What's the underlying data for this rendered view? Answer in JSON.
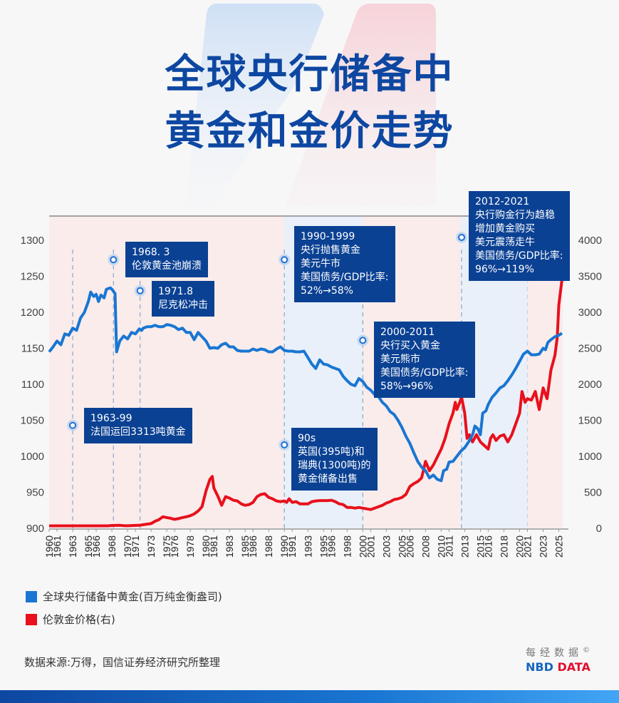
{
  "header": {
    "title_line1": "全球央行储备中",
    "title_line2": "黄金和金价走势"
  },
  "chart_data": {
    "type": "line",
    "title": "全球央行储备中黄金和金价走势",
    "xlabel": "",
    "ylabel_left": "全球央行储备中黄金(百万纯金衡盎司)",
    "ylabel_right": "伦敦金价格(右)",
    "ylim_left": [
      900,
      1300
    ],
    "ylim_right": [
      0,
      4000
    ],
    "y_ticks_left": [
      900,
      950,
      1000,
      1050,
      1100,
      1150,
      1200,
      1250,
      1300
    ],
    "y_ticks_right": [
      0,
      500,
      1000,
      1500,
      2000,
      2500,
      3000,
      3500,
      4000
    ],
    "x_tick_labels": [
      "1960",
      "1961",
      "1963",
      "1965",
      "1966",
      "1968",
      "1970",
      "1971",
      "1973",
      "1975",
      "1976",
      "1978",
      "1980",
      "1981",
      "1983",
      "1985",
      "1986",
      "1988",
      "1990",
      "1991",
      "1993",
      "1995",
      "1996",
      "1998",
      "2000",
      "2001",
      "2003",
      "2005",
      "2006",
      "2008",
      "2010",
      "2011",
      "2013",
      "2015",
      "2016",
      "2018",
      "2020",
      "2021",
      "2023",
      "2025"
    ],
    "x_range": [
      1960,
      2025.5
    ],
    "grid": false,
    "legend_position": "bottom-left",
    "series": [
      {
        "name": "全球央行储备中黄金(百万纯金衡盎司)",
        "axis": "left",
        "color": "#1976d2",
        "points": [
          [
            1960,
            1145
          ],
          [
            1960.5,
            1152
          ],
          [
            1961,
            1160
          ],
          [
            1961.5,
            1155
          ],
          [
            1962,
            1170
          ],
          [
            1962.5,
            1168
          ],
          [
            1963,
            1178
          ],
          [
            1963.5,
            1175
          ],
          [
            1964,
            1192
          ],
          [
            1964.5,
            1200
          ],
          [
            1965,
            1215
          ],
          [
            1965.3,
            1228
          ],
          [
            1965.7,
            1222
          ],
          [
            1966,
            1225
          ],
          [
            1966.3,
            1215
          ],
          [
            1966.6,
            1224
          ],
          [
            1967,
            1220
          ],
          [
            1967.3,
            1232
          ],
          [
            1967.8,
            1234
          ],
          [
            1968,
            1232
          ],
          [
            1968.4,
            1226
          ],
          [
            1968.6,
            1145
          ],
          [
            1969,
            1160
          ],
          [
            1969.5,
            1167
          ],
          [
            1970,
            1163
          ],
          [
            1970.5,
            1172
          ],
          [
            1971,
            1170
          ],
          [
            1971.5,
            1177
          ],
          [
            1971.8,
            1175
          ],
          [
            1972,
            1178
          ],
          [
            1972.5,
            1180
          ],
          [
            1973,
            1180
          ],
          [
            1973.5,
            1182
          ],
          [
            1974,
            1180
          ],
          [
            1974.5,
            1180
          ],
          [
            1975,
            1183
          ],
          [
            1975.5,
            1182
          ],
          [
            1976,
            1180
          ],
          [
            1976.5,
            1176
          ],
          [
            1977,
            1178
          ],
          [
            1977.5,
            1172
          ],
          [
            1978,
            1172
          ],
          [
            1978.5,
            1162
          ],
          [
            1979,
            1172
          ],
          [
            1979.5,
            1166
          ],
          [
            1980,
            1160
          ],
          [
            1980.5,
            1150
          ],
          [
            1981,
            1151
          ],
          [
            1981.5,
            1150
          ],
          [
            1982,
            1155
          ],
          [
            1982.5,
            1157
          ],
          [
            1983,
            1152
          ],
          [
            1983.5,
            1152
          ],
          [
            1984,
            1147
          ],
          [
            1984.5,
            1146
          ],
          [
            1985,
            1146
          ],
          [
            1985.5,
            1146
          ],
          [
            1986,
            1149
          ],
          [
            1986.5,
            1147
          ],
          [
            1987,
            1149
          ],
          [
            1987.5,
            1148
          ],
          [
            1988,
            1145
          ],
          [
            1988.5,
            1145
          ],
          [
            1989,
            1149
          ],
          [
            1989.5,
            1152
          ],
          [
            1990,
            1147
          ],
          [
            1990.5,
            1146
          ],
          [
            1991,
            1146
          ],
          [
            1991.5,
            1145
          ],
          [
            1992,
            1145
          ],
          [
            1992.5,
            1146
          ],
          [
            1993,
            1137
          ],
          [
            1993.5,
            1128
          ],
          [
            1994,
            1122
          ],
          [
            1994.5,
            1134
          ],
          [
            1995,
            1128
          ],
          [
            1995.5,
            1127
          ],
          [
            1996,
            1124
          ],
          [
            1996.5,
            1122
          ],
          [
            1997,
            1120
          ],
          [
            1997.5,
            1111
          ],
          [
            1998,
            1105
          ],
          [
            1998.5,
            1100
          ],
          [
            1999,
            1098
          ],
          [
            1999.5,
            1108
          ],
          [
            2000,
            1104
          ],
          [
            2000.5,
            1096
          ],
          [
            2001,
            1092
          ],
          [
            2001.5,
            1086
          ],
          [
            2002,
            1083
          ],
          [
            2002.5,
            1075
          ],
          [
            2003,
            1070
          ],
          [
            2003.5,
            1062
          ],
          [
            2004,
            1058
          ],
          [
            2004.5,
            1050
          ],
          [
            2005,
            1040
          ],
          [
            2005.5,
            1028
          ],
          [
            2006,
            1018
          ],
          [
            2006.5,
            1005
          ],
          [
            2007,
            993
          ],
          [
            2007.5,
            985
          ],
          [
            2008,
            980
          ],
          [
            2008.5,
            970
          ],
          [
            2009,
            974
          ],
          [
            2009.5,
            968
          ],
          [
            2010,
            966
          ],
          [
            2010.3,
            980
          ],
          [
            2010.7,
            982
          ],
          [
            2011,
            992
          ],
          [
            2011.5,
            993
          ],
          [
            2012,
            1000
          ],
          [
            2012.5,
            1007
          ],
          [
            2013,
            1012
          ],
          [
            2013.5,
            1020
          ],
          [
            2014,
            1030
          ],
          [
            2014.3,
            1042
          ],
          [
            2014.7,
            1038
          ],
          [
            2015,
            1030
          ],
          [
            2015.3,
            1060
          ],
          [
            2015.7,
            1063
          ],
          [
            2016,
            1072
          ],
          [
            2016.5,
            1082
          ],
          [
            2017,
            1088
          ],
          [
            2017.5,
            1095
          ],
          [
            2018,
            1098
          ],
          [
            2018.5,
            1105
          ],
          [
            2019,
            1113
          ],
          [
            2019.5,
            1122
          ],
          [
            2020,
            1132
          ],
          [
            2020.5,
            1142
          ],
          [
            2021,
            1146
          ],
          [
            2021.5,
            1141
          ],
          [
            2022,
            1141
          ],
          [
            2022.5,
            1142
          ],
          [
            2023,
            1150
          ],
          [
            2023.3,
            1148
          ],
          [
            2023.6,
            1158
          ],
          [
            2024,
            1162
          ],
          [
            2024.5,
            1166
          ],
          [
            2025,
            1168
          ],
          [
            2025.4,
            1171
          ]
        ]
      },
      {
        "name": "伦敦金价格(右)",
        "axis": "right",
        "color": "#e8101c",
        "points": [
          [
            1960,
            35
          ],
          [
            1962,
            35
          ],
          [
            1964,
            35
          ],
          [
            1966,
            35
          ],
          [
            1967.5,
            35
          ],
          [
            1968,
            40
          ],
          [
            1969,
            42
          ],
          [
            1969.5,
            38
          ],
          [
            1970,
            36
          ],
          [
            1971,
            41
          ],
          [
            1971.5,
            42
          ],
          [
            1972,
            50
          ],
          [
            1973,
            65
          ],
          [
            1973.5,
            98
          ],
          [
            1974,
            120
          ],
          [
            1974.5,
            160
          ],
          [
            1975,
            150
          ],
          [
            1975.5,
            140
          ],
          [
            1976,
            125
          ],
          [
            1976.5,
            135
          ],
          [
            1977,
            150
          ],
          [
            1977.5,
            160
          ],
          [
            1978,
            175
          ],
          [
            1978.5,
            200
          ],
          [
            1979,
            240
          ],
          [
            1979.5,
            300
          ],
          [
            1980,
            520
          ],
          [
            1980.5,
            680
          ],
          [
            1980.8,
            720
          ],
          [
            1981,
            560
          ],
          [
            1981.5,
            450
          ],
          [
            1982,
            320
          ],
          [
            1982.5,
            440
          ],
          [
            1983,
            420
          ],
          [
            1983.5,
            390
          ],
          [
            1984,
            380
          ],
          [
            1984.5,
            340
          ],
          [
            1985,
            320
          ],
          [
            1985.5,
            330
          ],
          [
            1986,
            360
          ],
          [
            1986.5,
            440
          ],
          [
            1987,
            470
          ],
          [
            1987.5,
            480
          ],
          [
            1988,
            430
          ],
          [
            1988.5,
            410
          ],
          [
            1989,
            380
          ],
          [
            1989.5,
            370
          ],
          [
            1990,
            380
          ],
          [
            1990.3,
            360
          ],
          [
            1990.6,
            410
          ],
          [
            1991,
            360
          ],
          [
            1991.5,
            370
          ],
          [
            1992,
            340
          ],
          [
            1992.5,
            340
          ],
          [
            1993,
            340
          ],
          [
            1993.5,
            370
          ],
          [
            1994,
            380
          ],
          [
            1994.5,
            385
          ],
          [
            1995,
            385
          ],
          [
            1995.5,
            385
          ],
          [
            1996,
            390
          ],
          [
            1996.5,
            370
          ],
          [
            1997,
            340
          ],
          [
            1997.5,
            330
          ],
          [
            1998,
            290
          ],
          [
            1998.5,
            290
          ],
          [
            1999,
            280
          ],
          [
            1999.5,
            290
          ],
          [
            2000,
            280
          ],
          [
            2000.5,
            270
          ],
          [
            2001,
            260
          ],
          [
            2001.5,
            280
          ],
          [
            2002,
            300
          ],
          [
            2002.5,
            320
          ],
          [
            2003,
            350
          ],
          [
            2003.5,
            370
          ],
          [
            2004,
            400
          ],
          [
            2004.5,
            410
          ],
          [
            2005,
            430
          ],
          [
            2005.5,
            470
          ],
          [
            2006,
            580
          ],
          [
            2006.5,
            620
          ],
          [
            2007,
            650
          ],
          [
            2007.5,
            700
          ],
          [
            2008,
            930
          ],
          [
            2008.5,
            800
          ],
          [
            2009,
            880
          ],
          [
            2009.5,
            990
          ],
          [
            2010,
            1100
          ],
          [
            2010.5,
            1250
          ],
          [
            2011,
            1450
          ],
          [
            2011.5,
            1600
          ],
          [
            2011.8,
            1750
          ],
          [
            2012,
            1650
          ],
          [
            2012.3,
            1730
          ],
          [
            2012.6,
            1820
          ],
          [
            2013,
            1600
          ],
          [
            2013.3,
            1250
          ],
          [
            2013.6,
            1300
          ],
          [
            2014,
            1200
          ],
          [
            2014.5,
            1300
          ],
          [
            2015,
            1200
          ],
          [
            2015.5,
            1150
          ],
          [
            2016,
            1100
          ],
          [
            2016.3,
            1250
          ],
          [
            2016.6,
            1300
          ],
          [
            2017,
            1220
          ],
          [
            2017.5,
            1280
          ],
          [
            2018,
            1300
          ],
          [
            2018.5,
            1200
          ],
          [
            2019,
            1300
          ],
          [
            2019.5,
            1450
          ],
          [
            2020,
            1600
          ],
          [
            2020.3,
            1900
          ],
          [
            2020.7,
            1750
          ],
          [
            2021,
            1800
          ],
          [
            2021.5,
            1780
          ],
          [
            2022,
            1900
          ],
          [
            2022.5,
            1650
          ],
          [
            2023,
            1950
          ],
          [
            2023.5,
            1800
          ],
          [
            2024,
            2200
          ],
          [
            2024.5,
            2400
          ],
          [
            2024.8,
            2650
          ],
          [
            2025,
            3100
          ],
          [
            2025.4,
            3450
          ]
        ]
      }
    ],
    "shaded_regions": [
      {
        "from": 1960,
        "to": 1990,
        "color": "#f9eceb"
      },
      {
        "from": 1990,
        "to": 2000,
        "color": "#e9f0f9"
      },
      {
        "from": 2000,
        "to": 2012.5,
        "color": "#f9eceb"
      },
      {
        "from": 2012.5,
        "to": 2021,
        "color": "#e9f0f9"
      },
      {
        "from": 2021,
        "to": 2025.5,
        "color": "#f9eceb"
      }
    ],
    "annotations": [
      {
        "x": 1963,
        "marker_y_left": 1043,
        "text": "1963-99\n法国运回3313吨黄金"
      },
      {
        "x": 1968.2,
        "marker_y_left": 1273,
        "text": "1968. 3\n伦敦黄金池崩溃"
      },
      {
        "x": 1971.6,
        "marker_y_left": 1230,
        "text": "1971.8\n尼克松冲击"
      },
      {
        "x": 1990,
        "marker_y_left": 1273,
        "text": "1990-1999\n央行抛售黄金\n美元牛市\n美国债务/GDP比率:\n52%→58%"
      },
      {
        "x": 1990,
        "marker_y_left": 1016,
        "text": "90s\n英国(395吨)和\n瑞典(1300吨)的\n黄金储备出售"
      },
      {
        "x": 2000,
        "marker_y_left": 1161,
        "text": "2000-2011\n央行买入黄金\n美元熊市\n美国债务/GDP比率:\n58%→96%"
      },
      {
        "x": 2012.6,
        "marker_y_left": 1304,
        "text": "2012-2021\n央行购金行为趋稳\n增加黄金购买\n美元震荡走牛\n美国债务/GDP比率:\n96%→119%"
      }
    ]
  },
  "legend": {
    "items": [
      {
        "label": "全球央行储备中黄金(百万纯金衡盎司)",
        "color": "#1976d2"
      },
      {
        "label": "伦敦金价格(右)",
        "color": "#e8101c"
      }
    ]
  },
  "footer": {
    "source": "数据来源:万得，国信证券经济研究所整理",
    "brand_cn": "每经数据",
    "brand_copyright": "©",
    "brand_en_1": "NBD",
    "brand_en_2": "DATA"
  }
}
